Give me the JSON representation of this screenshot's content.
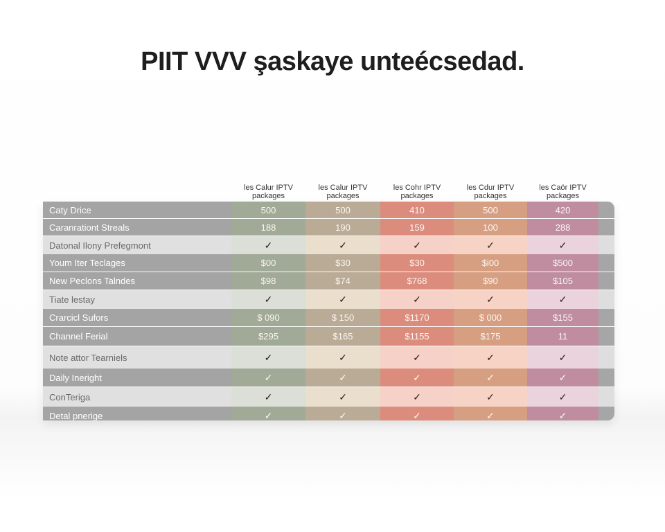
{
  "page": {
    "title": "PIIT VVV şaskaye unteécsedad."
  },
  "colors": {
    "columns_dark": [
      "#a1a997",
      "#b9ab95",
      "#dc8c7c",
      "#d79f82",
      "#bf8d9f"
    ],
    "columns_light": [
      "#dcdfd7",
      "#eadecd",
      "#f6d1c8",
      "#f6d3c5",
      "#ead3dc"
    ],
    "label_dark": "#a4a4a4",
    "label_light": "#e0e0e0"
  },
  "table": {
    "columns": [
      {
        "line1": "les Calur IPTV",
        "line2": "packages"
      },
      {
        "line1": "les Calur IPTV",
        "line2": "packages"
      },
      {
        "line1": "les Cohr IPTV",
        "line2": "packages"
      },
      {
        "line1": "les Cdur IPTV",
        "line2": "packages"
      },
      {
        "line1": "les Caör IPTV",
        "line2": "packages"
      }
    ],
    "rows": [
      {
        "label": "Caty Drice",
        "style": "dark",
        "values": [
          "500",
          "500",
          "410",
          "500",
          "420"
        ]
      },
      {
        "label": "Caranrationt Streals",
        "style": "dark",
        "values": [
          "188",
          "190",
          "159",
          "100",
          "288"
        ]
      },
      {
        "label": "Datonal Ilony Prefegmont",
        "style": "light",
        "values": [
          "✓",
          "✓",
          "✓",
          "✓",
          "✓"
        ]
      },
      {
        "label": "Youm Iter Teclages",
        "style": "dark",
        "values": [
          "$00",
          "$30",
          "$30",
          "$i00",
          "$500"
        ]
      },
      {
        "label": "New Peclons Talndes",
        "style": "dark",
        "values": [
          "$98",
          "$74",
          "$768",
          "$90",
          "$105"
        ]
      },
      {
        "label": "Tiate lestay",
        "style": "light",
        "values": [
          "✓",
          "✓",
          "✓",
          "✓",
          "✓"
        ]
      },
      {
        "label": "Crarcicl Sufors",
        "style": "dark",
        "values": [
          "$ 090",
          "$ 150",
          "$1170",
          "$ 000",
          "$155"
        ]
      },
      {
        "label": "Channel Ferial",
        "style": "dark",
        "values": [
          "$295",
          "$165",
          "$1155",
          "$175",
          "11"
        ]
      },
      {
        "label": "Note attor Tearniels",
        "style": "light",
        "values": [
          "✓",
          "✓",
          "✓",
          "✓",
          "✓"
        ]
      },
      {
        "label": "Daily Ineright",
        "style": "dark",
        "values": [
          "✓",
          "✓",
          "✓",
          "✓",
          "✓"
        ]
      },
      {
        "label": "ConTeriga",
        "style": "light",
        "values": [
          "✓",
          "✓",
          "✓",
          "✓",
          "✓"
        ]
      },
      {
        "label": "Detal pnerige",
        "style": "dark",
        "values": [
          "✓",
          "✓",
          "✓",
          "✓",
          "✓"
        ]
      }
    ]
  }
}
